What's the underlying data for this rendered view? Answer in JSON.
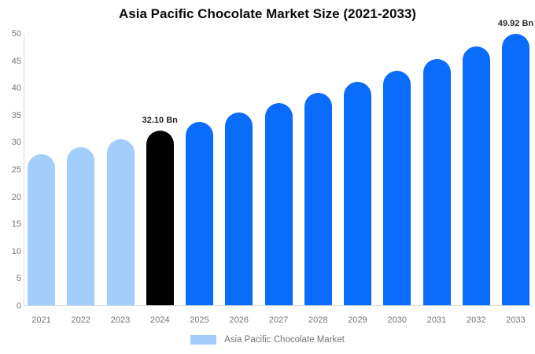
{
  "chart": {
    "title": "Asia Pacific Chocolate Market Size (2021-2033)"
  },
  "chart_data": {
    "type": "bar",
    "title": "Asia Pacific Chocolate Market Size (2021-2033)",
    "categories": [
      "2021",
      "2022",
      "2023",
      "2024",
      "2025",
      "2026",
      "2027",
      "2028",
      "2029",
      "2030",
      "2031",
      "2032",
      "2033"
    ],
    "values": [
      27.71,
      29.1,
      30.56,
      32.1,
      33.71,
      35.4,
      37.18,
      39.05,
      41.01,
      43.07,
      45.23,
      47.5,
      49.92
    ],
    "unit": "Bn",
    "xlabel": "",
    "ylabel": "",
    "ylim": [
      0,
      50
    ],
    "ytick_step": 5,
    "grid": false,
    "legend": "Asia Pacific Chocolate Market",
    "legend_position": "bottom",
    "bar_colors": [
      "#a3cdfa",
      "#a3cdfa",
      "#a3cdfa",
      "#000000",
      "#0a6cfa",
      "#0a6cfa",
      "#0a6cfa",
      "#0a6cfa",
      "#0a6cfa",
      "#0a6cfa",
      "#0a6cfa",
      "#0a6cfa",
      "#0a6cfa"
    ],
    "colors": {
      "historical_bar": "#a3cdfa",
      "highlight_bar": "#000000",
      "forecast_bar": "#0a6cfa",
      "axis_line": "#d9d9d9",
      "axis_text": "#757575",
      "annotation_text": "#2b2b2b",
      "title_text": "#0b0b0b"
    },
    "annotations": [
      {
        "category": "2024",
        "label": "32.10 Bn"
      },
      {
        "category": "2033",
        "label": "49.92 Bn"
      }
    ]
  }
}
